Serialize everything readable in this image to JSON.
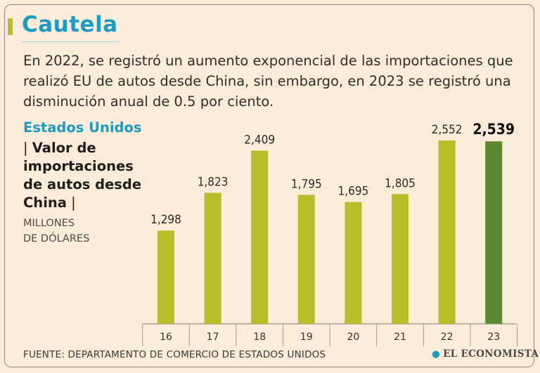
{
  "header": {
    "title": "Cautela",
    "intro": "En 2022, se registró un aumento exponencial de las importaciones que realizó EU de autos desde China, sin embargo, en 2023 se registró una disminución anual de 0.5 por ciento."
  },
  "sidebar": {
    "country": "Estados Unidos",
    "desc_open": "| ",
    "desc_bold": "Valor de importaciones de autos desde China",
    "desc_close": " |",
    "units_line1": "MILLONES",
    "units_line2": "DE DÓLARES"
  },
  "footer": {
    "source": "FUENTE: DEPARTAMENTO DE COMERCIO DE ESTADOS UNIDOS",
    "brand": "EL ECONOMISTA",
    "brand_mark": "●"
  },
  "colors": {
    "accent": "#1c9cc3",
    "bar": "#b6bf2a",
    "bar_highlight": "#5c8a2e",
    "background": "#faecd9"
  },
  "chart_data": {
    "type": "bar",
    "categories": [
      "16",
      "17",
      "18",
      "19",
      "20",
      "21",
      "22",
      "23"
    ],
    "values": [
      1298,
      1823,
      2409,
      1795,
      1695,
      1805,
      2552,
      2539
    ],
    "labels": [
      "1,298",
      "1,823",
      "2,409",
      "1,795",
      "1,695",
      "1,805",
      "2,552",
      "2,539"
    ],
    "highlight_index": 7,
    "ylim": [
      0,
      2600
    ],
    "grid": false
  }
}
